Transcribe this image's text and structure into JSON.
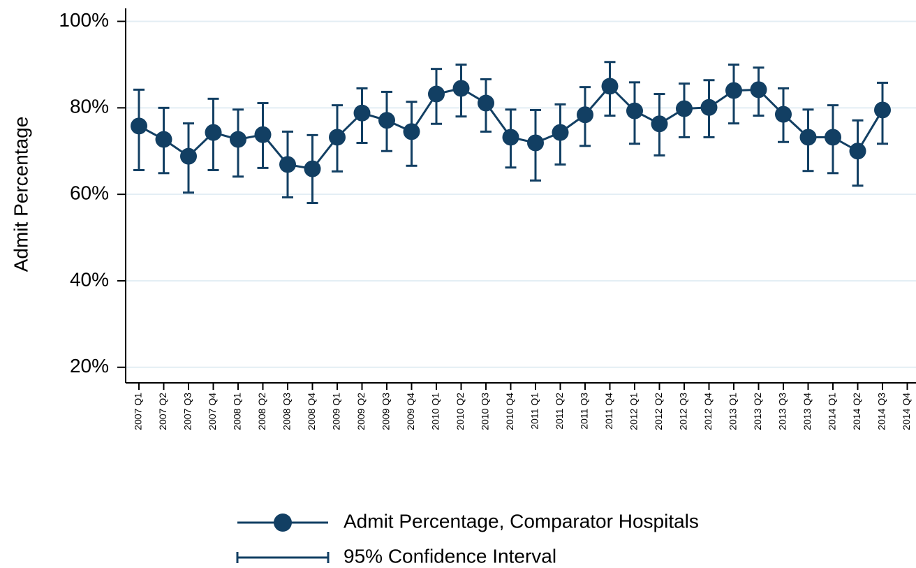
{
  "chart_data": {
    "type": "line",
    "ylabel": "Admit Percentage",
    "categories": [
      "2007 Q1",
      "2007 Q2",
      "2007 Q3",
      "2007 Q4",
      "2008 Q1",
      "2008 Q2",
      "2008 Q3",
      "2008 Q4",
      "2009 Q1",
      "2009 Q2",
      "2009 Q3",
      "2009 Q4",
      "2010 Q1",
      "2010 Q2",
      "2010 Q3",
      "2010 Q4",
      "2011 Q1",
      "2011 Q2",
      "2011 Q3",
      "2011 Q4",
      "2012 Q1",
      "2012 Q2",
      "2012 Q3",
      "2012 Q4",
      "2013 Q1",
      "2013 Q2",
      "2013 Q3",
      "2013 Q4",
      "2014 Q1",
      "2014 Q2",
      "2014 Q3",
      "2014 Q4"
    ],
    "series": [
      {
        "name": "Admit Percentage, Comparator Hospitals",
        "color": "#123f63",
        "values": [
          75.8,
          72.7,
          68.8,
          74.3,
          72.7,
          73.8,
          66.9,
          65.9,
          73.2,
          78.8,
          77.1,
          74.5,
          83.2,
          84.5,
          81.1,
          73.2,
          71.9,
          74.3,
          78.4,
          85.0,
          79.3,
          76.3,
          79.8,
          80.1,
          84.0,
          84.2,
          78.5,
          73.2,
          73.2,
          70.0,
          79.5,
          null
        ],
        "ci_name": "95% Confidence Interval",
        "ci_lower": [
          65.6,
          64.9,
          60.4,
          65.6,
          64.1,
          66.1,
          59.3,
          58.0,
          65.3,
          71.9,
          70.0,
          66.6,
          76.3,
          78.0,
          74.5,
          66.2,
          63.2,
          66.9,
          71.2,
          78.2,
          71.7,
          69.0,
          73.2,
          73.2,
          76.4,
          78.2,
          72.1,
          65.4,
          64.9,
          62.0,
          71.7,
          null
        ],
        "ci_upper": [
          84.2,
          80.0,
          76.4,
          82.1,
          79.6,
          81.1,
          74.5,
          73.7,
          80.6,
          84.5,
          83.7,
          81.4,
          89.0,
          90.0,
          86.6,
          79.6,
          79.5,
          80.8,
          84.8,
          90.6,
          85.9,
          83.2,
          85.6,
          86.4,
          90.0,
          89.3,
          84.5,
          79.6,
          80.6,
          77.1,
          85.8,
          null
        ]
      }
    ],
    "ylim": [
      16.4,
      103
    ],
    "yticks": [
      {
        "value": 20,
        "label": "20%"
      },
      {
        "value": 40,
        "label": "40%"
      },
      {
        "value": 60,
        "label": "60%"
      },
      {
        "value": 80,
        "label": "80%"
      },
      {
        "value": 100,
        "label": "100%"
      }
    ],
    "grid": true,
    "grid_color": "#e3eef4"
  }
}
